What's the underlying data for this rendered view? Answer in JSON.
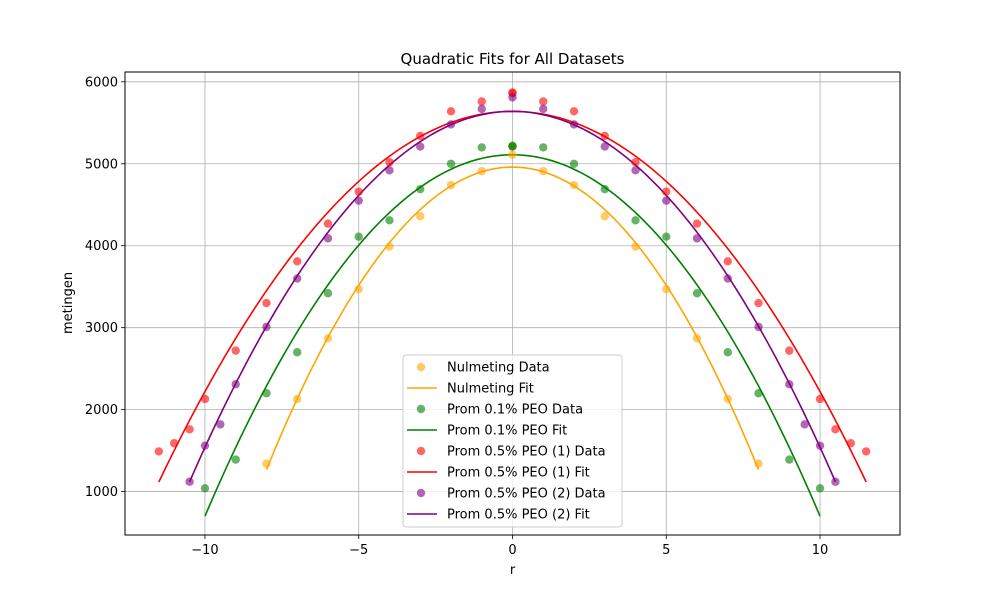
{
  "chart_data": {
    "type": "scatter",
    "title": "Quadratic Fits for All Datasets",
    "xlabel": "r",
    "ylabel": "metingen",
    "xlim": [
      -12.6,
      12.6
    ],
    "ylim": [
      470,
      6120
    ],
    "xticks": [
      -10,
      -5,
      0,
      5,
      10
    ],
    "xtick_labels": [
      "−10",
      "−5",
      "0",
      "5",
      "10"
    ],
    "yticks": [
      1000,
      2000,
      3000,
      4000,
      5000,
      6000
    ],
    "ytick_labels": [
      "1000",
      "2000",
      "3000",
      "4000",
      "5000",
      "6000"
    ],
    "grid": true,
    "legend_position": "bottom-center",
    "series": [
      {
        "name": "Nulmeting Data",
        "kind": "scatter",
        "color": "#FFA500",
        "x": [
          -8,
          -7,
          -6,
          -5,
          -4,
          -3,
          -2,
          -1,
          0,
          0,
          1,
          2,
          3,
          4,
          5,
          6,
          7,
          8
        ],
        "y": [
          1340,
          2130,
          2870,
          3470,
          3990,
          4360,
          4740,
          4910,
          5110,
          5210,
          4910,
          4740,
          4360,
          3990,
          3470,
          2870,
          2130,
          1340
        ]
      },
      {
        "name": "Nulmeting Fit",
        "kind": "fit",
        "color": "#FFA500",
        "coeffs": [
          4960,
          0,
          -57.7
        ],
        "range": [
          -8,
          8
        ]
      },
      {
        "name": "Prom 0.1% PEO Data",
        "kind": "scatter",
        "color": "#008000",
        "x": [
          -10,
          -9,
          -8,
          -7,
          -6,
          -5,
          -4,
          -3,
          -2,
          -1,
          0,
          0,
          1,
          2,
          3,
          4,
          5,
          6,
          7,
          8,
          9,
          10
        ],
        "y": [
          1040,
          1390,
          2200,
          2700,
          3420,
          4110,
          4310,
          4690,
          5000,
          5200,
          5210,
          5220,
          5200,
          5000,
          4690,
          4310,
          4110,
          3420,
          2700,
          2200,
          1390,
          1040
        ]
      },
      {
        "name": "Prom 0.1% PEO Fit",
        "kind": "fit",
        "color": "#008000",
        "coeffs": [
          5110,
          0,
          -44.1
        ],
        "range": [
          -10,
          10
        ]
      },
      {
        "name": "Prom 0.5% PEO (1) Data",
        "kind": "scatter",
        "color": "#FF0000",
        "x": [
          -11.5,
          -11,
          -10.5,
          -10,
          -9,
          -8,
          -7,
          -6,
          -5,
          -4,
          -3,
          -2,
          -1,
          0,
          0,
          1,
          2,
          3,
          4,
          5,
          6,
          7,
          8,
          9,
          10,
          10.5,
          11,
          11.5
        ],
        "y": [
          1490,
          1590,
          1760,
          2130,
          2720,
          3300,
          3810,
          4270,
          4660,
          5020,
          5340,
          5640,
          5760,
          5870,
          5860,
          5760,
          5640,
          5340,
          5020,
          4660,
          4270,
          3810,
          3300,
          2720,
          2130,
          1760,
          1590,
          1490
        ]
      },
      {
        "name": "Prom 0.5% PEO (1) Fit",
        "kind": "fit",
        "color": "#FF0000",
        "coeffs": [
          5640,
          0,
          -34.2
        ],
        "range": [
          -11.5,
          11.5
        ]
      },
      {
        "name": "Prom 0.5% PEO (2) Data",
        "kind": "scatter",
        "color": "#800080",
        "x": [
          -10.5,
          -10,
          -9.5,
          -9,
          -8,
          -7,
          -6,
          -5,
          -4,
          -3,
          -2,
          -1,
          0,
          1,
          2,
          3,
          4,
          5,
          6,
          7,
          8,
          9,
          9.5,
          10,
          10.5
        ],
        "y": [
          1120,
          1560,
          1820,
          2310,
          3010,
          3600,
          4090,
          4550,
          4920,
          5210,
          5480,
          5670,
          5810,
          5670,
          5480,
          5210,
          4920,
          4550,
          4090,
          3600,
          3010,
          2310,
          1820,
          1560,
          1120
        ]
      },
      {
        "name": "Prom 0.5% PEO (2) Fit",
        "kind": "fit",
        "color": "#800080",
        "coeffs": [
          5640,
          0,
          -41.0
        ],
        "range": [
          -10.5,
          10.5
        ]
      }
    ]
  }
}
